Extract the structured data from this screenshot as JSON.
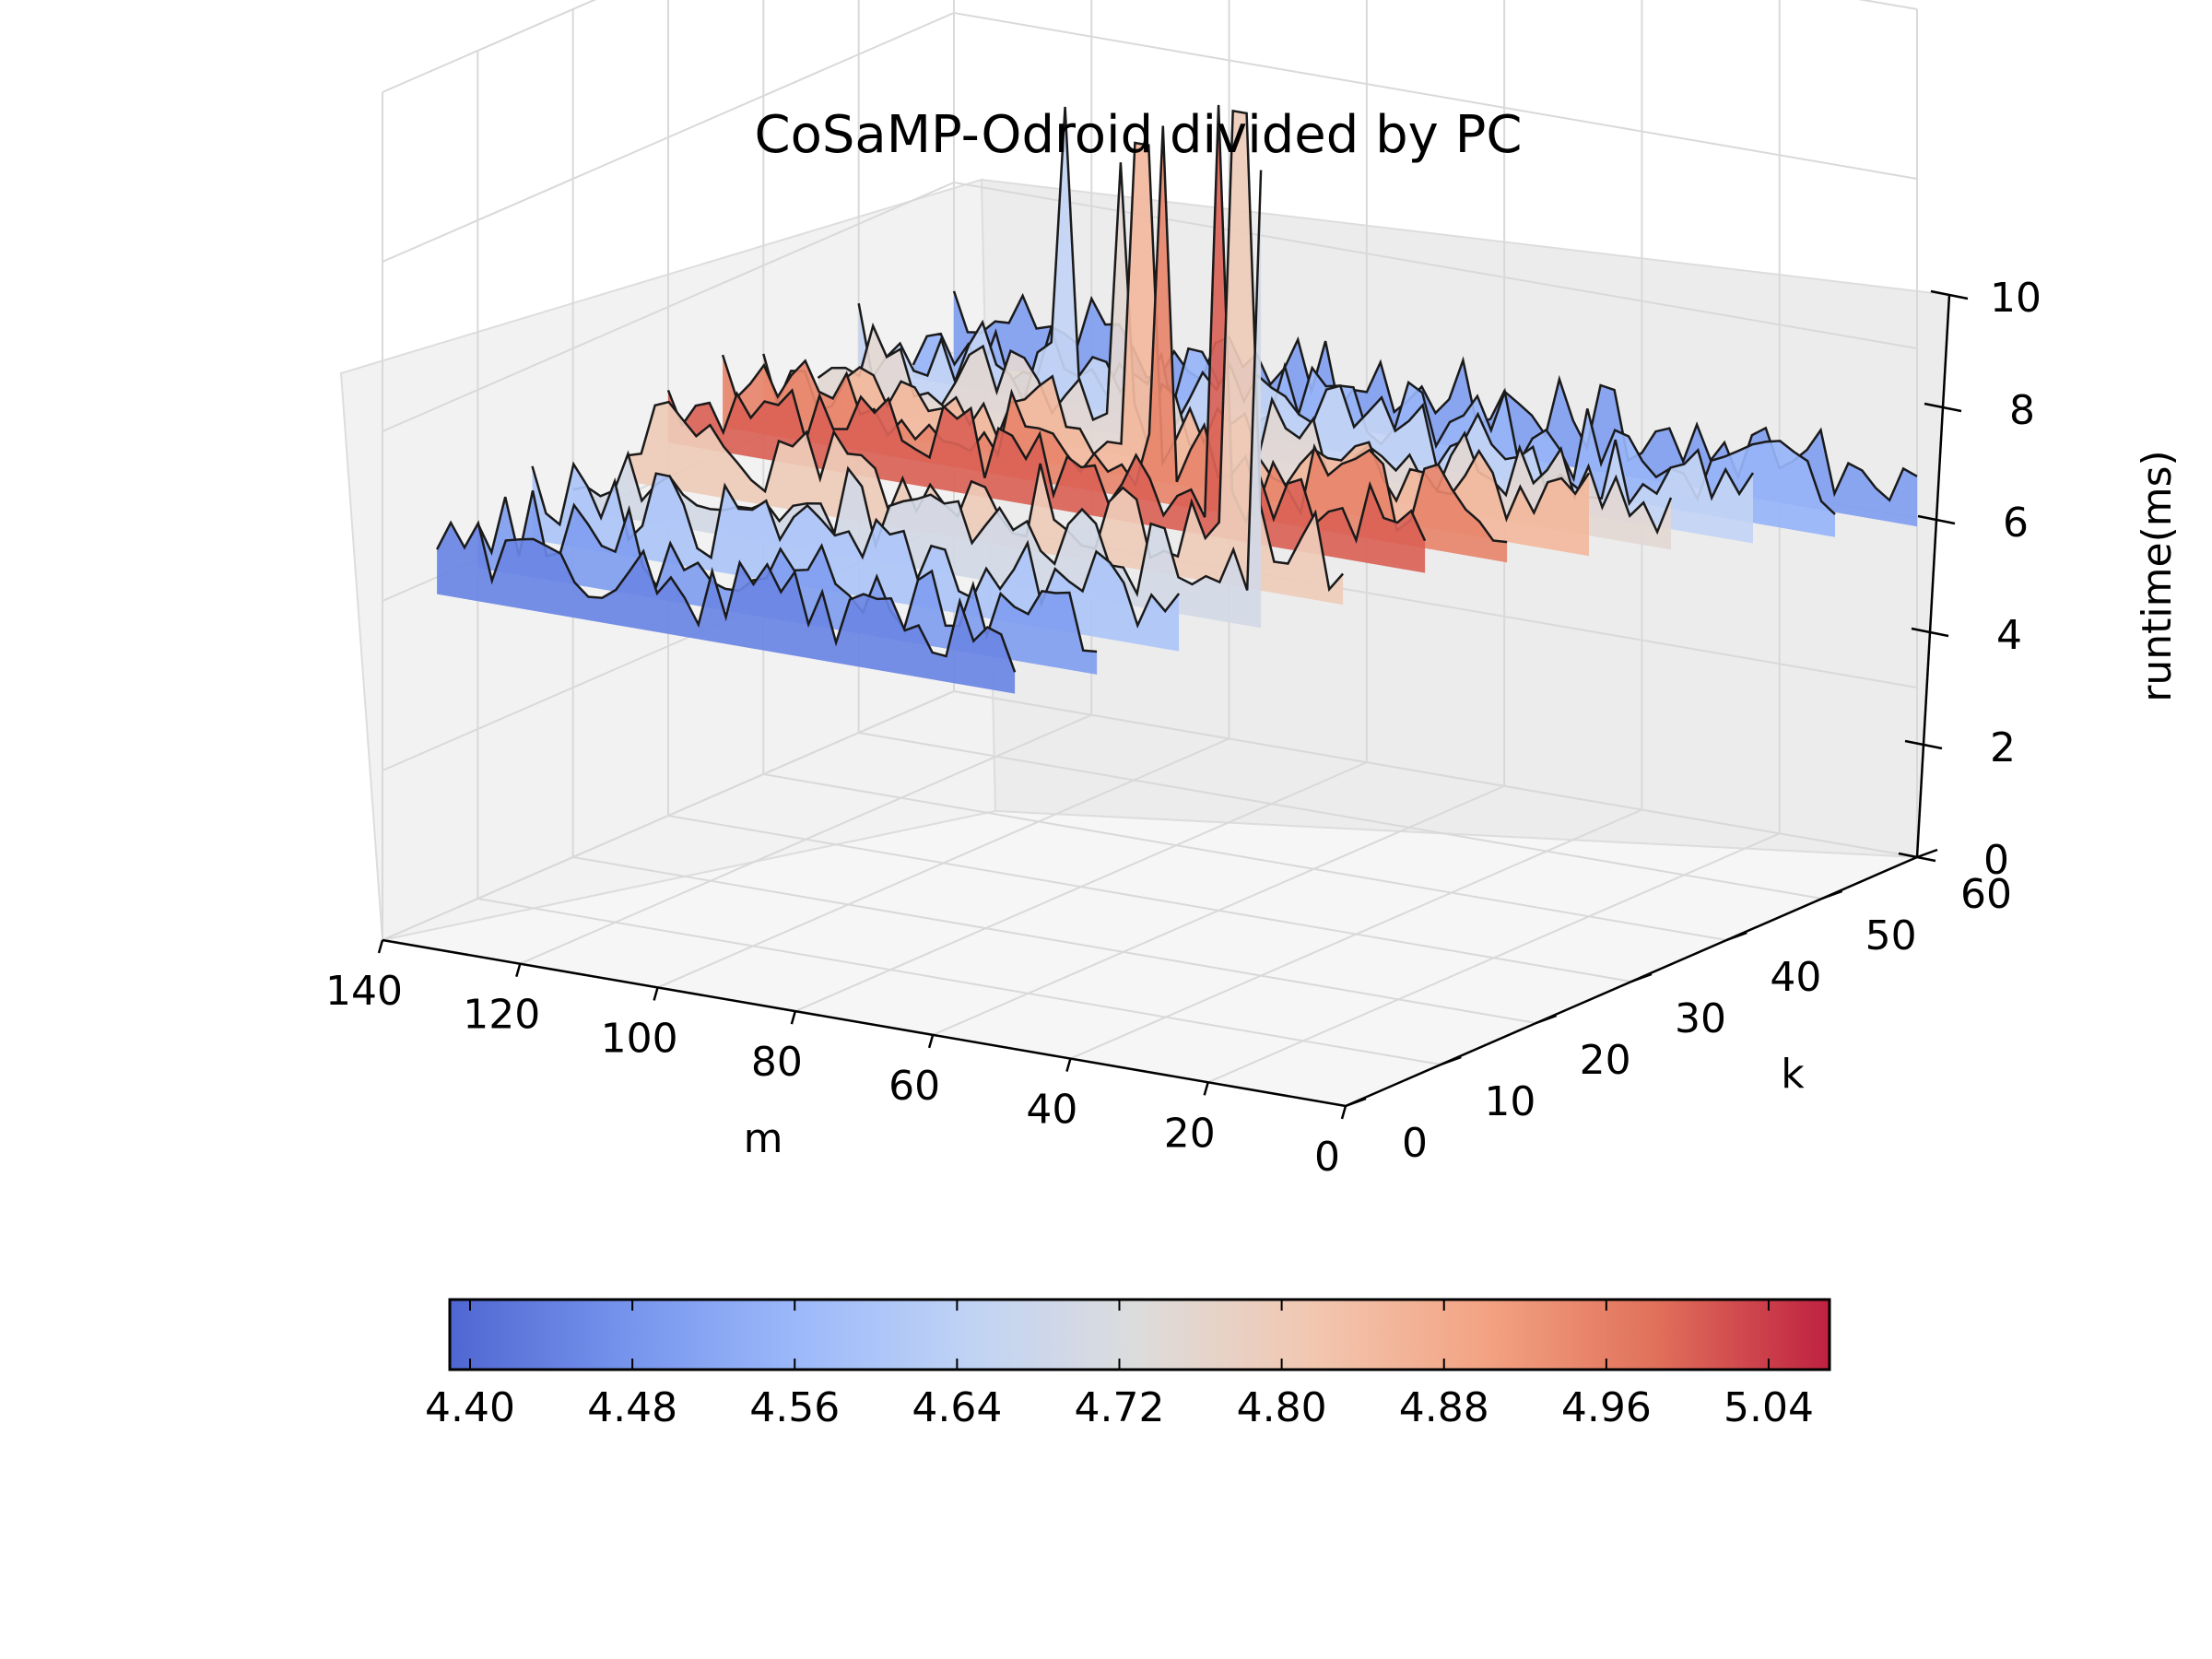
{
  "chart_data": {
    "type": "surface3d",
    "title": "CoSaMP-Odroid divided by PC",
    "xlabel": "m",
    "ylabel": "k",
    "zlabel": "runtime(ms)",
    "x_ticks": [
      "0",
      "20",
      "40",
      "60",
      "80",
      "100",
      "120",
      "140"
    ],
    "y_ticks": [
      "0",
      "10",
      "20",
      "30",
      "40",
      "50",
      "60"
    ],
    "z_ticks": [
      "0",
      "2",
      "4",
      "6",
      "8",
      "10"
    ],
    "xlim": [
      0,
      140
    ],
    "ylim": [
      0,
      60
    ],
    "zlim": [
      0,
      10
    ],
    "colormap": "coolwarm",
    "colorbar": {
      "ticks": [
        "4.40",
        "4.48",
        "4.56",
        "4.64",
        "4.72",
        "4.80",
        "4.88",
        "4.96",
        "5.04"
      ],
      "range": [
        4.39,
        5.07
      ],
      "placement": "bottom"
    },
    "series": [
      {
        "k": 60,
        "m_start": 0,
        "mean": 4.5,
        "spike_m": [],
        "spike_z": []
      },
      {
        "k": 55,
        "m_start": 5,
        "mean": 4.55,
        "spike_m": [],
        "spike_z": []
      },
      {
        "k": 50,
        "m_start": 10,
        "mean": 4.65,
        "spike_m": [
          110
        ],
        "spike_z": [
          7.8
        ]
      },
      {
        "k": 45,
        "m_start": 15,
        "mean": 4.75,
        "spike_m": [
          95
        ],
        "spike_z": [
          7.6
        ]
      },
      {
        "k": 40,
        "m_start": 20,
        "mean": 4.85,
        "spike_m": [
          85
        ],
        "spike_z": [
          8.2
        ]
      },
      {
        "k": 35,
        "m_start": 25,
        "mean": 4.95,
        "spike_m": [
          75
        ],
        "spike_z": [
          8.8
        ]
      },
      {
        "k": 30,
        "m_start": 30,
        "mean": 5.0,
        "spike_m": [
          60
        ],
        "spike_z": [
          9.5
        ]
      },
      {
        "k": 25,
        "m_start": 35,
        "mean": 4.8,
        "spike_m": [
          50
        ],
        "spike_z": [
          9.8
        ]
      },
      {
        "k": 20,
        "m_start": 40,
        "mean": 4.7,
        "spike_m": [
          40
        ],
        "spike_z": [
          9.5
        ]
      },
      {
        "k": 15,
        "m_start": 45,
        "mean": 4.6,
        "spike_m": [
          30
        ],
        "spike_z": [
          8.5
        ]
      },
      {
        "k": 10,
        "m_start": 50,
        "mean": 4.5,
        "spike_m": [
          20
        ],
        "spike_z": [
          8.0
        ]
      },
      {
        "k": 5,
        "m_start": 55,
        "mean": 4.45,
        "spike_m": [
          10
        ],
        "spike_z": [
          7.0
        ]
      }
    ]
  }
}
